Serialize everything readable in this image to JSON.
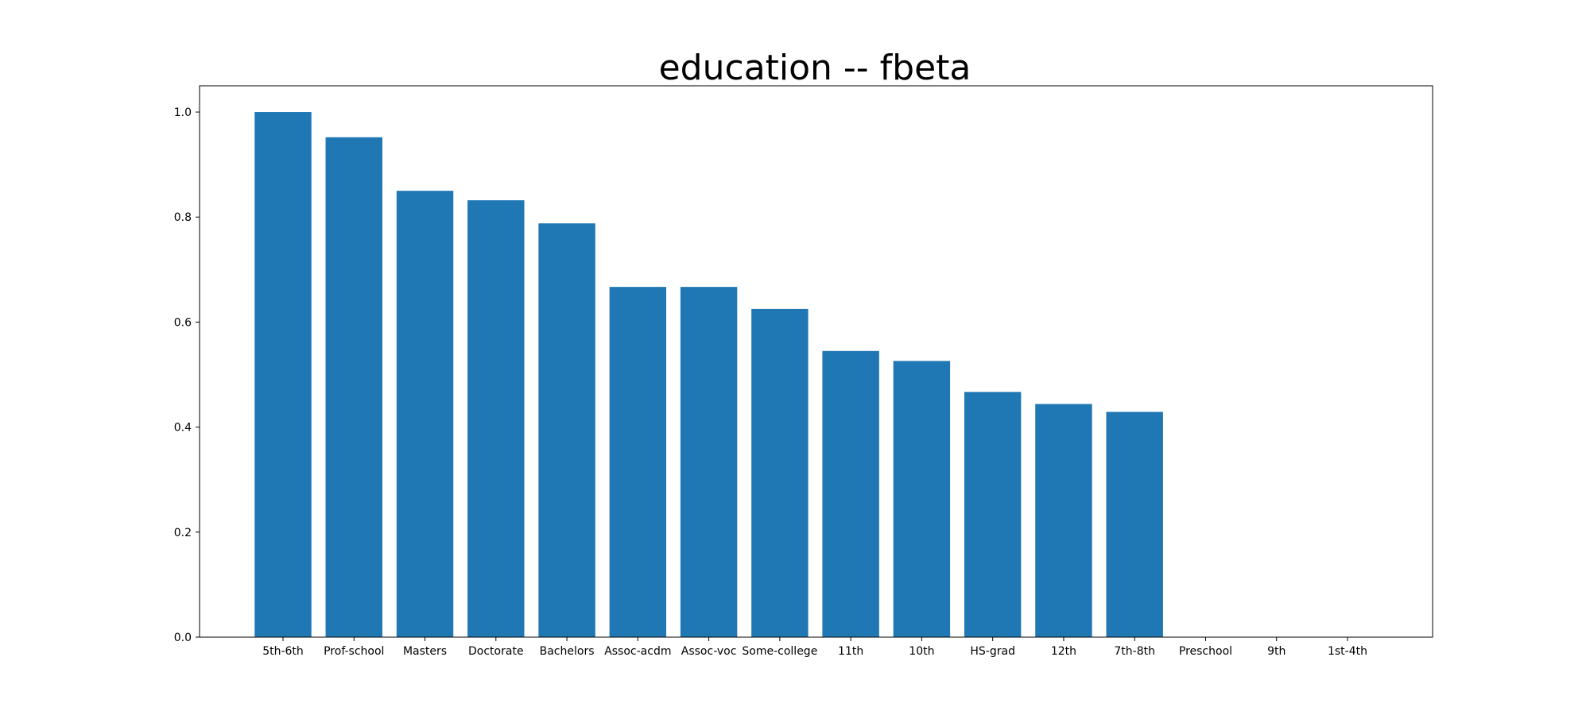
{
  "chart_data": {
    "type": "bar",
    "title": "education -- fbeta",
    "xlabel": "",
    "ylabel": "",
    "categories": [
      "5th-6th",
      "Prof-school",
      "Masters",
      "Doctorate",
      "Bachelors",
      "Assoc-acdm",
      "Assoc-voc",
      "Some-college",
      "11th",
      "10th",
      "HS-grad",
      "12th",
      "7th-8th",
      "Preschool",
      "9th",
      "1st-4th"
    ],
    "values": [
      1.0,
      0.952,
      0.85,
      0.832,
      0.788,
      0.667,
      0.667,
      0.625,
      0.545,
      0.526,
      0.467,
      0.444,
      0.429,
      0.0,
      0.0,
      0.0
    ],
    "ylim": [
      0,
      1.05
    ],
    "yticks": [
      0.0,
      0.2,
      0.4,
      0.6,
      0.8,
      1.0
    ],
    "ytick_labels": [
      "0.0",
      "0.2",
      "0.4",
      "0.6",
      "0.8",
      "1.0"
    ],
    "grid": false,
    "bar_color": "#1f77b4",
    "axes_color": "#000000"
  }
}
